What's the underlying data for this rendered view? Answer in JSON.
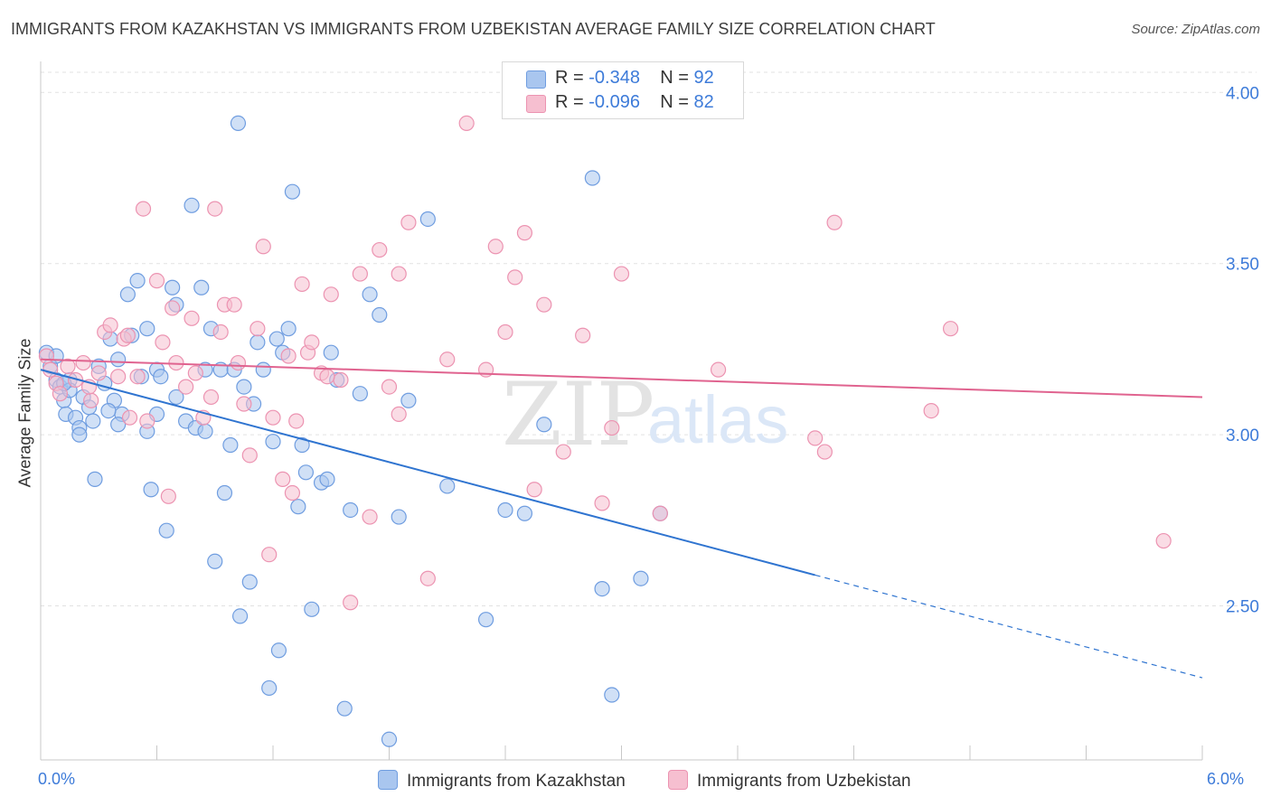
{
  "title": "IMMIGRANTS FROM KAZAKHSTAN VS IMMIGRANTS FROM UZBEKISTAN AVERAGE FAMILY SIZE CORRELATION CHART",
  "source": "Source: ZipAtlas.com",
  "watermark": {
    "zip": "ZIP",
    "atlas": "atlas"
  },
  "legend": {
    "r_label": "R =",
    "n_label": "N =",
    "kazakhstan": {
      "r": "-0.348",
      "n": "92"
    },
    "uzbekistan": {
      "r": "-0.096",
      "n": "82"
    }
  },
  "colors": {
    "kazakhstan_fill": "#a9c6ef",
    "kazakhstan_stroke": "#6f9de0",
    "kazakhstan_line": "#2f74d0",
    "uzbekistan_fill": "#f6bfd0",
    "uzbekistan_stroke": "#ec93b1",
    "uzbekistan_line": "#e0638f"
  },
  "chart_data": {
    "type": "scatter",
    "title": "IMMIGRANTS FROM KAZAKHSTAN VS IMMIGRANTS FROM UZBEKISTAN AVERAGE FAMILY SIZE CORRELATION CHART",
    "xlabel": "",
    "ylabel": "Average Family Size",
    "xlim": [
      0,
      6
    ],
    "ylim": [
      2.05,
      4.08
    ],
    "x_tick_labels": [
      "0.0%",
      "6.0%"
    ],
    "y_ticks": [
      2.5,
      3.0,
      3.5,
      4.0
    ],
    "y_tick_labels": [
      "2.50",
      "3.00",
      "3.50",
      "4.00"
    ],
    "grid": true,
    "legend_position": "top-center",
    "series": [
      {
        "name": "Immigrants from Kazakhstan",
        "trend": {
          "x0": 0.0,
          "y0": 3.19,
          "x1": 4.0,
          "y1": 2.59,
          "dashed_to_x": 6.0,
          "dashed_to_y": 2.29
        },
        "points": [
          [
            0.03,
            3.24
          ],
          [
            0.05,
            3.2
          ],
          [
            0.08,
            3.16
          ],
          [
            0.1,
            3.14
          ],
          [
            0.12,
            3.1
          ],
          [
            0.13,
            3.06
          ],
          [
            0.15,
            3.16
          ],
          [
            0.18,
            3.05
          ],
          [
            0.2,
            3.02
          ],
          [
            0.22,
            3.11
          ],
          [
            0.25,
            3.08
          ],
          [
            0.27,
            3.04
          ],
          [
            0.3,
            3.2
          ],
          [
            0.33,
            3.15
          ],
          [
            0.36,
            3.28
          ],
          [
            0.38,
            3.1
          ],
          [
            0.4,
            3.22
          ],
          [
            0.42,
            3.06
          ],
          [
            0.45,
            3.41
          ],
          [
            0.47,
            3.29
          ],
          [
            0.5,
            3.45
          ],
          [
            0.52,
            3.17
          ],
          [
            0.55,
            3.01
          ],
          [
            0.57,
            2.84
          ],
          [
            0.6,
            3.19
          ],
          [
            0.62,
            3.17
          ],
          [
            0.65,
            2.72
          ],
          [
            0.68,
            3.43
          ],
          [
            0.7,
            3.38
          ],
          [
            0.75,
            3.04
          ],
          [
            0.78,
            3.67
          ],
          [
            0.8,
            3.02
          ],
          [
            0.83,
            3.43
          ],
          [
            0.85,
            3.19
          ],
          [
            0.88,
            3.31
          ],
          [
            0.9,
            2.63
          ],
          [
            0.93,
            3.19
          ],
          [
            0.95,
            2.83
          ],
          [
            0.98,
            2.97
          ],
          [
            1.0,
            3.19
          ],
          [
            1.03,
            2.47
          ],
          [
            1.05,
            3.14
          ],
          [
            1.08,
            2.57
          ],
          [
            1.1,
            3.09
          ],
          [
            1.12,
            3.27
          ],
          [
            1.15,
            3.19
          ],
          [
            1.18,
            2.26
          ],
          [
            1.2,
            2.98
          ],
          [
            1.23,
            2.37
          ],
          [
            1.25,
            3.24
          ],
          [
            1.28,
            3.31
          ],
          [
            1.3,
            3.71
          ],
          [
            1.33,
            2.79
          ],
          [
            1.35,
            2.97
          ],
          [
            1.37,
            2.89
          ],
          [
            1.4,
            2.49
          ],
          [
            1.45,
            2.86
          ],
          [
            1.48,
            2.87
          ],
          [
            1.5,
            3.24
          ],
          [
            1.53,
            3.16
          ],
          [
            1.57,
            2.2
          ],
          [
            1.6,
            2.78
          ],
          [
            1.65,
            3.12
          ],
          [
            1.7,
            3.41
          ],
          [
            1.75,
            3.35
          ],
          [
            1.8,
            2.11
          ],
          [
            1.85,
            2.76
          ],
          [
            1.9,
            3.1
          ],
          [
            2.0,
            3.63
          ],
          [
            2.1,
            2.85
          ],
          [
            2.3,
            2.46
          ],
          [
            2.4,
            2.78
          ],
          [
            2.5,
            2.77
          ],
          [
            2.6,
            3.03
          ],
          [
            2.85,
            3.75
          ],
          [
            2.9,
            2.55
          ],
          [
            2.95,
            2.24
          ],
          [
            3.1,
            2.58
          ],
          [
            3.2,
            2.77
          ],
          [
            1.02,
            3.91
          ],
          [
            0.4,
            3.03
          ],
          [
            0.6,
            3.06
          ],
          [
            0.7,
            3.11
          ],
          [
            0.2,
            3.0
          ],
          [
            0.35,
            3.07
          ],
          [
            0.28,
            2.87
          ],
          [
            0.55,
            3.31
          ],
          [
            0.85,
            3.01
          ],
          [
            1.22,
            3.28
          ],
          [
            0.15,
            3.13
          ],
          [
            0.12,
            3.15
          ],
          [
            0.08,
            3.23
          ]
        ]
      },
      {
        "name": "Immigrants from Uzbekistan",
        "trend": {
          "x0": 0.0,
          "y0": 3.22,
          "x1": 6.0,
          "y1": 3.11
        },
        "points": [
          [
            0.03,
            3.23
          ],
          [
            0.05,
            3.19
          ],
          [
            0.08,
            3.15
          ],
          [
            0.1,
            3.12
          ],
          [
            0.14,
            3.2
          ],
          [
            0.18,
            3.16
          ],
          [
            0.22,
            3.21
          ],
          [
            0.26,
            3.1
          ],
          [
            0.3,
            3.18
          ],
          [
            0.33,
            3.3
          ],
          [
            0.36,
            3.32
          ],
          [
            0.4,
            3.17
          ],
          [
            0.43,
            3.28
          ],
          [
            0.46,
            3.05
          ],
          [
            0.5,
            3.17
          ],
          [
            0.53,
            3.66
          ],
          [
            0.55,
            3.04
          ],
          [
            0.6,
            3.45
          ],
          [
            0.63,
            3.27
          ],
          [
            0.66,
            2.82
          ],
          [
            0.7,
            3.21
          ],
          [
            0.75,
            3.14
          ],
          [
            0.78,
            3.34
          ],
          [
            0.8,
            3.18
          ],
          [
            0.84,
            3.05
          ],
          [
            0.88,
            3.11
          ],
          [
            0.9,
            3.66
          ],
          [
            0.93,
            3.3
          ],
          [
            0.95,
            3.38
          ],
          [
            1.0,
            3.38
          ],
          [
            1.02,
            3.21
          ],
          [
            1.05,
            3.09
          ],
          [
            1.08,
            2.94
          ],
          [
            1.12,
            3.31
          ],
          [
            1.15,
            3.55
          ],
          [
            1.18,
            2.65
          ],
          [
            1.2,
            3.05
          ],
          [
            1.25,
            2.87
          ],
          [
            1.3,
            2.83
          ],
          [
            1.32,
            3.04
          ],
          [
            1.35,
            3.44
          ],
          [
            1.38,
            3.24
          ],
          [
            1.4,
            3.27
          ],
          [
            1.45,
            3.18
          ],
          [
            1.5,
            3.41
          ],
          [
            1.55,
            3.16
          ],
          [
            1.6,
            2.51
          ],
          [
            1.65,
            3.47
          ],
          [
            1.7,
            2.76
          ],
          [
            1.75,
            3.54
          ],
          [
            1.8,
            3.14
          ],
          [
            1.85,
            3.47
          ],
          [
            1.9,
            3.62
          ],
          [
            2.0,
            2.58
          ],
          [
            2.1,
            3.22
          ],
          [
            2.2,
            3.91
          ],
          [
            2.3,
            3.19
          ],
          [
            2.35,
            3.55
          ],
          [
            2.4,
            3.3
          ],
          [
            2.45,
            3.46
          ],
          [
            2.5,
            3.59
          ],
          [
            2.55,
            2.84
          ],
          [
            2.6,
            3.38
          ],
          [
            2.7,
            2.95
          ],
          [
            2.8,
            3.29
          ],
          [
            2.9,
            2.8
          ],
          [
            2.95,
            3.02
          ],
          [
            3.0,
            3.47
          ],
          [
            3.2,
            2.77
          ],
          [
            3.5,
            3.19
          ],
          [
            4.0,
            2.99
          ],
          [
            4.05,
            2.95
          ],
          [
            4.1,
            3.62
          ],
          [
            4.6,
            3.07
          ],
          [
            4.7,
            3.31
          ],
          [
            5.8,
            2.69
          ],
          [
            0.45,
            3.29
          ],
          [
            0.25,
            3.14
          ],
          [
            1.48,
            3.17
          ],
          [
            0.68,
            3.37
          ],
          [
            1.85,
            3.06
          ],
          [
            1.28,
            3.23
          ]
        ]
      }
    ]
  },
  "bottom_legend": {
    "kazakhstan": "Immigrants from Kazakhstan",
    "uzbekistan": "Immigrants from Uzbekistan"
  }
}
